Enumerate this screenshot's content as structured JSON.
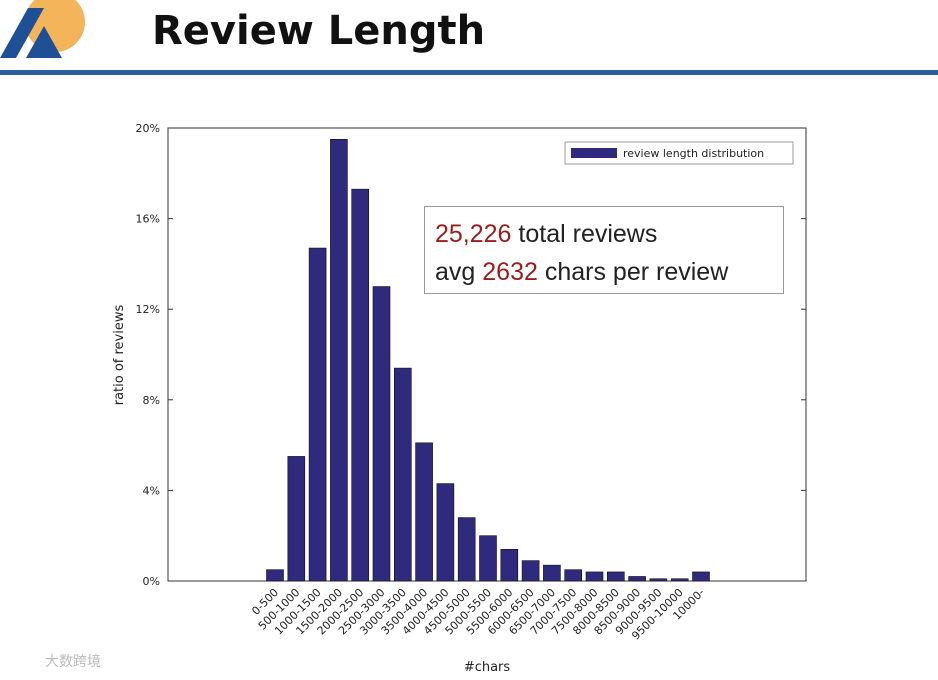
{
  "header": {
    "title": "Review Length",
    "watermark": "大数跨境"
  },
  "chart_data": {
    "type": "bar",
    "x_label": "#chars",
    "y_label": "ratio of reviews",
    "categories": [
      "0-500",
      "500-1000",
      "1000-1500",
      "1500-2000",
      "2000-2500",
      "2500-3000",
      "3000-3500",
      "3500-4000",
      "4000-4500",
      "4500-5000",
      "5000-5500",
      "5500-6000",
      "6000-6500",
      "6500-7000",
      "7000-7500",
      "7500-8000",
      "8000-8500",
      "8500-9000",
      "9000-9500",
      "9500-10000",
      "10000-"
    ],
    "series": [
      {
        "name": "review length distribution",
        "color": "#2f2a7e",
        "values": [
          0.5,
          5.5,
          14.7,
          19.5,
          17.3,
          13.0,
          9.4,
          6.1,
          4.3,
          2.8,
          2.0,
          1.4,
          0.9,
          0.7,
          0.5,
          0.4,
          0.4,
          0.2,
          0.1,
          0.1,
          0.4
        ]
      }
    ],
    "ylim": [
      0,
      20
    ],
    "yticks": [
      {
        "value": 0,
        "label": "0%"
      },
      {
        "value": 4,
        "label": "4%"
      },
      {
        "value": 8,
        "label": "8%"
      },
      {
        "value": 12,
        "label": "12%"
      },
      {
        "value": 16,
        "label": "16%"
      },
      {
        "value": 20,
        "label": "20%"
      }
    ],
    "legend": "upper right",
    "annotations": [
      {
        "highlight": "25,226",
        "after": "total reviews"
      },
      {
        "before": "avg",
        "highlight": "2632",
        "after": "chars per review"
      }
    ]
  }
}
